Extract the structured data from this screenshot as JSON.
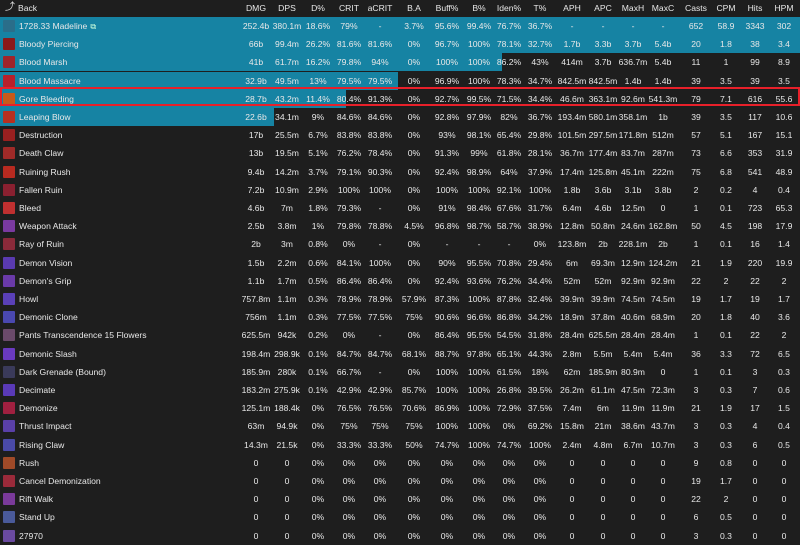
{
  "header": {
    "back_label": "Back",
    "columns": [
      "DMG",
      "DPS",
      "D%",
      "CRIT",
      "aCRIT",
      "B.A",
      "Buff%",
      "B%",
      "Iden%",
      "T%",
      "APH",
      "APC",
      "MaxH",
      "MaxC",
      "Casts",
      "CPM",
      "Hits",
      "HPM"
    ]
  },
  "colors": {
    "bar": "#1683a3",
    "highlight": "#e8202a",
    "background": "#1e1e1e"
  },
  "rows": [
    {
      "name": "1728.33 Madeline",
      "share": 1.0,
      "icon": "player-class-icon",
      "icon_color": "#2a6e8a",
      "link": true,
      "values": [
        "252.4b",
        "380.1m",
        "18.6%",
        "79%",
        "-",
        "3.7%",
        "95.6%",
        "99.4%",
        "76.7%",
        "36.7%",
        "-",
        "-",
        "-",
        "-",
        "652",
        "58.9",
        "3343",
        "302"
      ]
    },
    {
      "name": "Bloody Piercing",
      "share": 1.0,
      "icon": "bloody-piercing-icon",
      "icon_color": "#8a1a1a",
      "values": [
        "66b",
        "99.4m",
        "26.2%",
        "81.6%",
        "81.6%",
        "0%",
        "96.7%",
        "100%",
        "78.1%",
        "32.7%",
        "1.7b",
        "3.3b",
        "3.7b",
        "5.4b",
        "20",
        "1.8",
        "38",
        "3.4"
      ]
    },
    {
      "name": "Blood Marsh",
      "share": 0.628,
      "icon": "blood-marsh-icon",
      "icon_color": "#a0242a",
      "values": [
        "41b",
        "61.7m",
        "16.2%",
        "79.8%",
        "94%",
        "0%",
        "100%",
        "100%",
        "86.2%",
        "43%",
        "414m",
        "3.7b",
        "636.7m",
        "5.4b",
        "11",
        "1",
        "99",
        "8.9"
      ]
    },
    {
      "name": "Blood Massacre",
      "share": 0.498,
      "icon": "blood-massacre-icon",
      "icon_color": "#b8202a",
      "values": [
        "32.9b",
        "49.5m",
        "13%",
        "79.5%",
        "79.5%",
        "0%",
        "96.9%",
        "100%",
        "78.3%",
        "34.7%",
        "842.5m",
        "842.5m",
        "1.4b",
        "1.4b",
        "39",
        "3.5",
        "39",
        "3.5"
      ]
    },
    {
      "name": "Gore Bleeding",
      "share": 0.432,
      "icon": "gore-bleeding-icon",
      "icon_color": "#c85a1a",
      "values": [
        "28.7b",
        "43.2m",
        "11.4%",
        "80.4%",
        "91.3%",
        "0%",
        "92.7%",
        "99.5%",
        "71.5%",
        "34.4%",
        "46.6m",
        "363.1m",
        "92.6m",
        "541.3m",
        "79",
        "7.1",
        "616",
        "55.6"
      ]
    },
    {
      "name": "Leaping Blow",
      "share": 0.343,
      "icon": "leaping-blow-icon",
      "icon_color": "#b83020",
      "values": [
        "22.6b",
        "34.1m",
        "9%",
        "84.6%",
        "84.6%",
        "0%",
        "92.8%",
        "97.9%",
        "82%",
        "36.7%",
        "193.4m",
        "580.1m",
        "358.1m",
        "1b",
        "39",
        "3.5",
        "117",
        "10.6"
      ]
    },
    {
      "name": "Destruction",
      "share": 0.0,
      "icon": "destruction-icon",
      "icon_color": "#9a2020",
      "values": [
        "17b",
        "25.5m",
        "6.7%",
        "83.8%",
        "83.8%",
        "0%",
        "93%",
        "98.1%",
        "65.4%",
        "29.8%",
        "101.5m",
        "297.5m",
        "171.8m",
        "512m",
        "57",
        "5.1",
        "167",
        "15.1"
      ]
    },
    {
      "name": "Death Claw",
      "share": 0.0,
      "icon": "death-claw-icon",
      "icon_color": "#a02a28",
      "values": [
        "13b",
        "19.5m",
        "5.1%",
        "76.2%",
        "78.4%",
        "0%",
        "91.3%",
        "99%",
        "61.8%",
        "28.1%",
        "36.7m",
        "177.4m",
        "83.7m",
        "287m",
        "73",
        "6.6",
        "353",
        "31.9"
      ]
    },
    {
      "name": "Ruining Rush",
      "share": 0.0,
      "icon": "ruining-rush-icon",
      "icon_color": "#b82a20",
      "values": [
        "9.4b",
        "14.2m",
        "3.7%",
        "79.1%",
        "90.3%",
        "0%",
        "92.4%",
        "98.9%",
        "64%",
        "37.9%",
        "17.4m",
        "125.8m",
        "45.1m",
        "222m",
        "75",
        "6.8",
        "541",
        "48.9"
      ]
    },
    {
      "name": "Fallen Ruin",
      "share": 0.0,
      "icon": "fallen-ruin-icon",
      "icon_color": "#8a2030",
      "values": [
        "7.2b",
        "10.9m",
        "2.9%",
        "100%",
        "100%",
        "0%",
        "100%",
        "100%",
        "92.1%",
        "100%",
        "1.8b",
        "3.6b",
        "3.1b",
        "3.8b",
        "2",
        "0.2",
        "4",
        "0.4"
      ]
    },
    {
      "name": "Bleed",
      "share": 0.0,
      "icon": "bleed-icon",
      "icon_color": "#c03030",
      "values": [
        "4.6b",
        "7m",
        "1.8%",
        "79.3%",
        "-",
        "0%",
        "91%",
        "98.4%",
        "67.6%",
        "31.7%",
        "6.4m",
        "4.6b",
        "12.5m",
        "0",
        "1",
        "0.1",
        "723",
        "65.3"
      ]
    },
    {
      "name": "Weapon Attack",
      "share": 0.0,
      "icon": "weapon-attack-icon",
      "icon_color": "#7a3aa0",
      "values": [
        "2.5b",
        "3.8m",
        "1%",
        "79.8%",
        "78.8%",
        "4.5%",
        "96.8%",
        "98.7%",
        "58.7%",
        "38.9%",
        "12.8m",
        "50.8m",
        "24.6m",
        "162.8m",
        "50",
        "4.5",
        "198",
        "17.9"
      ]
    },
    {
      "name": "Ray of Ruin",
      "share": 0.0,
      "icon": "ray-of-ruin-icon",
      "icon_color": "#8a2a3a",
      "values": [
        "2b",
        "3m",
        "0.8%",
        "0%",
        "-",
        "0%",
        "-",
        "-",
        "-",
        "0%",
        "123.8m",
        "2b",
        "228.1m",
        "2b",
        "1",
        "0.1",
        "16",
        "1.4"
      ]
    },
    {
      "name": "Demon Vision",
      "share": 0.0,
      "icon": "demon-vision-icon",
      "icon_color": "#5a3ab0",
      "values": [
        "1.5b",
        "2.2m",
        "0.6%",
        "84.1%",
        "100%",
        "0%",
        "90%",
        "95.5%",
        "70.8%",
        "29.4%",
        "6m",
        "69.3m",
        "12.9m",
        "124.2m",
        "21",
        "1.9",
        "220",
        "19.9"
      ]
    },
    {
      "name": "Demon's Grip",
      "share": 0.0,
      "icon": "demons-grip-icon",
      "icon_color": "#6a3aa8",
      "values": [
        "1.1b",
        "1.7m",
        "0.5%",
        "86.4%",
        "86.4%",
        "0%",
        "92.4%",
        "93.6%",
        "76.2%",
        "34.4%",
        "52m",
        "52m",
        "92.9m",
        "92.9m",
        "22",
        "2",
        "22",
        "2"
      ]
    },
    {
      "name": "Howl",
      "share": 0.0,
      "icon": "howl-icon",
      "icon_color": "#5a40b8",
      "values": [
        "757.8m",
        "1.1m",
        "0.3%",
        "78.9%",
        "78.9%",
        "57.9%",
        "87.3%",
        "100%",
        "87.8%",
        "32.4%",
        "39.9m",
        "39.9m",
        "74.5m",
        "74.5m",
        "19",
        "1.7",
        "19",
        "1.7"
      ]
    },
    {
      "name": "Demonic Clone",
      "share": 0.0,
      "icon": "demonic-clone-icon",
      "icon_color": "#4a48b0",
      "values": [
        "756m",
        "1.1m",
        "0.3%",
        "77.5%",
        "77.5%",
        "75%",
        "90.6%",
        "96.6%",
        "86.8%",
        "34.2%",
        "18.9m",
        "37.8m",
        "40.6m",
        "68.9m",
        "20",
        "1.8",
        "40",
        "3.6"
      ]
    },
    {
      "name": "Pants Transcendence 15 Flowers",
      "share": 0.0,
      "icon": "pants-transcendence-icon",
      "icon_color": "#6a4a6a",
      "values": [
        "625.5m",
        "942k",
        "0.2%",
        "0%",
        "-",
        "0%",
        "86.4%",
        "95.5%",
        "54.5%",
        "31.8%",
        "28.4m",
        "625.5m",
        "28.4m",
        "28.4m",
        "1",
        "0.1",
        "22",
        "2"
      ]
    },
    {
      "name": "Demonic Slash",
      "share": 0.0,
      "icon": "demonic-slash-icon",
      "icon_color": "#6a3ac0",
      "values": [
        "198.4m",
        "298.9k",
        "0.1%",
        "84.7%",
        "84.7%",
        "68.1%",
        "88.7%",
        "97.8%",
        "65.1%",
        "44.3%",
        "2.8m",
        "5.5m",
        "5.4m",
        "5.4m",
        "36",
        "3.3",
        "72",
        "6.5"
      ]
    },
    {
      "name": "Dark Grenade (Bound)",
      "share": 0.0,
      "icon": "dark-grenade-icon",
      "icon_color": "#3a3a5a",
      "values": [
        "185.9m",
        "280k",
        "0.1%",
        "66.7%",
        "-",
        "0%",
        "100%",
        "100%",
        "61.5%",
        "18%",
        "62m",
        "185.9m",
        "80.9m",
        "0",
        "1",
        "0.1",
        "3",
        "0.3"
      ]
    },
    {
      "name": "Decimate",
      "share": 0.0,
      "icon": "decimate-icon",
      "icon_color": "#5a3ab8",
      "values": [
        "183.2m",
        "275.9k",
        "0.1%",
        "42.9%",
        "42.9%",
        "85.7%",
        "100%",
        "100%",
        "26.8%",
        "39.5%",
        "26.2m",
        "61.1m",
        "47.5m",
        "72.3m",
        "3",
        "0.3",
        "7",
        "0.6"
      ]
    },
    {
      "name": "Demonize",
      "share": 0.0,
      "icon": "demonize-icon",
      "icon_color": "#a02040",
      "values": [
        "125.1m",
        "188.4k",
        "0%",
        "76.5%",
        "76.5%",
        "70.6%",
        "86.9%",
        "100%",
        "72.9%",
        "37.5%",
        "7.4m",
        "6m",
        "11.9m",
        "11.9m",
        "21",
        "1.9",
        "17",
        "1.5"
      ]
    },
    {
      "name": "Thrust Impact",
      "share": 0.0,
      "icon": "thrust-impact-icon",
      "icon_color": "#5a40a8",
      "values": [
        "63m",
        "94.9k",
        "0%",
        "75%",
        "75%",
        "75%",
        "100%",
        "100%",
        "0%",
        "69.2%",
        "15.8m",
        "21m",
        "38.6m",
        "43.7m",
        "3",
        "0.3",
        "4",
        "0.4"
      ]
    },
    {
      "name": "Rising Claw",
      "share": 0.0,
      "icon": "rising-claw-icon",
      "icon_color": "#4a4aa8",
      "values": [
        "14.3m",
        "21.5k",
        "0%",
        "33.3%",
        "33.3%",
        "50%",
        "74.7%",
        "100%",
        "74.7%",
        "100%",
        "2.4m",
        "4.8m",
        "6.7m",
        "10.7m",
        "3",
        "0.3",
        "6",
        "0.5"
      ]
    },
    {
      "name": "Rush",
      "share": 0.0,
      "icon": "rush-icon",
      "icon_color": "#a04a28",
      "values": [
        "0",
        "0",
        "0%",
        "0%",
        "0%",
        "0%",
        "0%",
        "0%",
        "0%",
        "0%",
        "0",
        "0",
        "0",
        "0",
        "9",
        "0.8",
        "0",
        "0"
      ]
    },
    {
      "name": "Cancel Demonization",
      "share": 0.0,
      "icon": "cancel-demonization-icon",
      "icon_color": "#9a2a3a",
      "values": [
        "0",
        "0",
        "0%",
        "0%",
        "0%",
        "0%",
        "0%",
        "0%",
        "0%",
        "0%",
        "0",
        "0",
        "0",
        "0",
        "19",
        "1.7",
        "0",
        "0"
      ]
    },
    {
      "name": "Rift Walk",
      "share": 0.0,
      "icon": "rift-walk-icon",
      "icon_color": "#7a3a9a",
      "values": [
        "0",
        "0",
        "0%",
        "0%",
        "0%",
        "0%",
        "0%",
        "0%",
        "0%",
        "0%",
        "0",
        "0",
        "0",
        "0",
        "22",
        "2",
        "0",
        "0"
      ]
    },
    {
      "name": "Stand Up",
      "share": 0.0,
      "icon": "stand-up-icon",
      "icon_color": "#4a5a9a",
      "values": [
        "0",
        "0",
        "0%",
        "0%",
        "0%",
        "0%",
        "0%",
        "0%",
        "0%",
        "0%",
        "0",
        "0",
        "0",
        "0",
        "6",
        "0.5",
        "0",
        "0"
      ]
    },
    {
      "name": "27970",
      "share": 0.0,
      "icon": "unknown-skill-icon",
      "icon_color": "#6a4aa0",
      "values": [
        "0",
        "0",
        "0%",
        "0%",
        "0%",
        "0%",
        "0%",
        "0%",
        "0%",
        "0%",
        "0",
        "0",
        "0",
        "0",
        "3",
        "0.3",
        "0",
        "0"
      ]
    }
  ]
}
